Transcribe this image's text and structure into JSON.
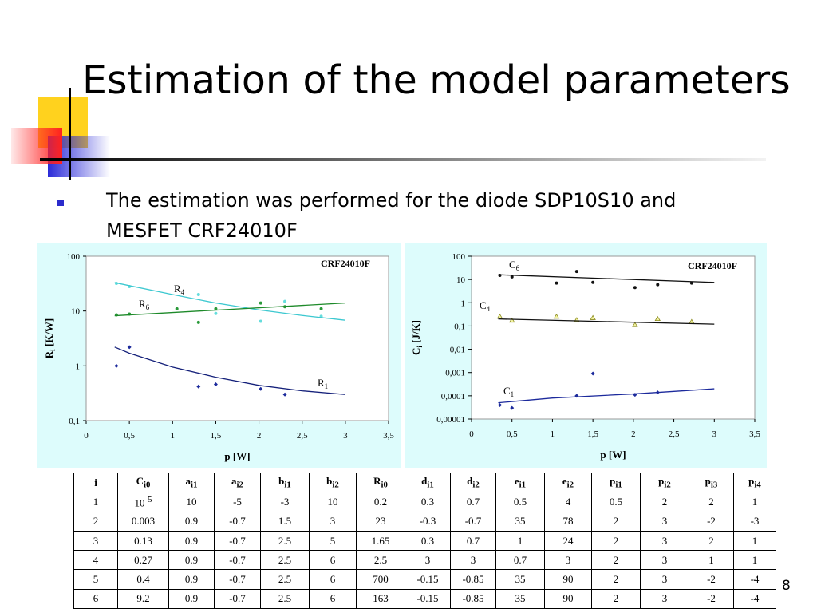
{
  "title": "Estimation of the model parameters",
  "bullet": [
    "The estimation was performed for the diode SDP10S10 and",
    "MESFET CRF24010F"
  ],
  "chart_data": [
    {
      "type": "scatter",
      "annotation": "CRF24010F",
      "xlabel": "p [W]",
      "ylabel": {
        "base": "R",
        "sub": "i",
        "rest": " [K/W]"
      },
      "log_y": true,
      "xlim": [
        0,
        3.5
      ],
      "ylim": [
        0.1,
        100
      ],
      "xticks": [
        0,
        {
          "value": 0.5,
          "label": "0,5"
        },
        1,
        {
          "value": 1.5,
          "label": "1,5"
        },
        2,
        {
          "value": 2.5,
          "label": "2,5"
        },
        3,
        {
          "value": 3.5,
          "label": "3,5"
        }
      ],
      "yticks": [
        {
          "value": 0.1,
          "label": "0,1"
        },
        1,
        10,
        100
      ],
      "series": [
        {
          "name": "R",
          "sub": "4",
          "color": "#66dddd",
          "marker": "circle",
          "x": [
            0.35,
            0.5,
            1.3,
            1.5,
            2.02,
            2.3,
            2.72
          ],
          "values": [
            32,
            28,
            20,
            9,
            6.5,
            15,
            8
          ]
        },
        {
          "name": "R",
          "sub": "6",
          "color": "#2a9a3a",
          "marker": "circle",
          "x": [
            0.35,
            0.5,
            1.05,
            1.3,
            1.5,
            2.02,
            2.3,
            2.72
          ],
          "values": [
            8.5,
            8.8,
            11,
            6.2,
            11,
            14,
            12,
            11
          ]
        },
        {
          "name": "R",
          "sub": "1",
          "color": "#1c2a9c",
          "marker": "diamond",
          "x": [
            0.35,
            0.5,
            1.3,
            1.5,
            2.02,
            2.3
          ],
          "values": [
            1.0,
            2.2,
            0.42,
            0.46,
            0.38,
            0.3
          ]
        },
        {
          "color": "#3cc8d0",
          "marker": "line",
          "x": [
            0.33,
            1,
            1.5,
            2,
            2.5,
            3
          ],
          "values": [
            33,
            20,
            14,
            10.5,
            8.3,
            6.8
          ]
        },
        {
          "color": "#1e8a2a",
          "marker": "line",
          "x": [
            0.33,
            3
          ],
          "values": [
            8.2,
            14
          ]
        },
        {
          "color": "#14207a",
          "marker": "line",
          "x": [
            0.33,
            0.5,
            1,
            1.5,
            2,
            2.5,
            3
          ],
          "values": [
            2.2,
            1.7,
            0.95,
            0.62,
            0.44,
            0.35,
            0.3
          ]
        }
      ]
    },
    {
      "type": "scatter",
      "annotation": "CRF24010F",
      "xlabel": "p [W]",
      "ylabel": {
        "base": "C",
        "sub": "i",
        "rest": " [J/K]"
      },
      "log_y": true,
      "xlim": [
        0,
        3.5
      ],
      "ylim": [
        1e-05,
        100
      ],
      "xticks": [
        0,
        {
          "value": 0.5,
          "label": "0,5"
        },
        1,
        {
          "value": 1.5,
          "label": "1,5"
        },
        2,
        {
          "value": 2.5,
          "label": "2,5"
        },
        3,
        {
          "value": 3.5,
          "label": "3,5"
        }
      ],
      "yticks": [
        {
          "value": 1e-05,
          "label": "0,00001"
        },
        {
          "value": 0.0001,
          "label": "0,0001"
        },
        {
          "value": 0.001,
          "label": "0,001"
        },
        {
          "value": 0.01,
          "label": "0,01"
        },
        {
          "value": 0.1,
          "label": "0,1"
        },
        1,
        10,
        100
      ],
      "series": [
        {
          "name": "C",
          "sub": "6",
          "color": "#111111",
          "marker": "circle",
          "x": [
            0.35,
            0.5,
            1.05,
            1.3,
            1.5,
            2.02,
            2.3,
            2.72
          ],
          "values": [
            15,
            13,
            7,
            22,
            7.5,
            4.5,
            6,
            7
          ]
        },
        {
          "name": "C",
          "sub": "4",
          "color": "#8a8a20",
          "marker": "triangle",
          "x": [
            0.35,
            0.5,
            1.05,
            1.3,
            1.5,
            2.02,
            2.3,
            2.72
          ],
          "values": [
            0.25,
            0.17,
            0.25,
            0.18,
            0.22,
            0.11,
            0.2,
            0.15
          ]
        },
        {
          "name": "C",
          "sub": "1",
          "color": "#1c2a9c",
          "marker": "diamond",
          "x": [
            0.35,
            0.5,
            1.3,
            1.5,
            2.02,
            2.3
          ],
          "values": [
            4e-05,
            3e-05,
            0.0001,
            0.0009,
            0.00011,
            0.00014
          ]
        },
        {
          "color": "#111111",
          "marker": "line",
          "x": [
            0.33,
            3
          ],
          "values": [
            16,
            7.5
          ]
        },
        {
          "color": "#111111",
          "marker": "line",
          "x": [
            0.33,
            3
          ],
          "values": [
            0.2,
            0.12
          ]
        },
        {
          "color": "#1c2a9c",
          "marker": "line",
          "x": [
            0.33,
            1,
            2,
            3
          ],
          "values": [
            5e-05,
            8e-05,
            0.00012,
            0.0002
          ]
        }
      ]
    }
  ],
  "table": {
    "header": [
      "i",
      {
        "base": "C",
        "sub": "i0"
      },
      {
        "base": "a",
        "sub": "i1"
      },
      {
        "base": "a",
        "sub": "i2"
      },
      {
        "base": "b",
        "sub": "i1"
      },
      {
        "base": "b",
        "sub": "i2"
      },
      {
        "base": "R",
        "sub": "i0"
      },
      {
        "base": "d",
        "sub": "i1"
      },
      {
        "base": "d",
        "sub": "i2"
      },
      {
        "base": "e",
        "sub": "i1"
      },
      {
        "base": "e",
        "sub": "i2"
      },
      {
        "base": "p",
        "sub": "i1"
      },
      {
        "base": "p",
        "sub": "i2"
      },
      {
        "base": "p",
        "sub": "i3"
      },
      {
        "base": "p",
        "sub": "i4"
      }
    ],
    "rows": [
      [
        "1",
        {
          "base": "10",
          "sup": "-5"
        },
        "10",
        "-5",
        "-3",
        "10",
        "0.2",
        "0.3",
        "0.7",
        "0.5",
        "4",
        "0.5",
        "2",
        "2",
        "1"
      ],
      [
        "2",
        "0.003",
        "0.9",
        "-0.7",
        "1.5",
        "3",
        "23",
        "-0.3",
        "-0.7",
        "35",
        "78",
        "2",
        "3",
        "-2",
        "-3"
      ],
      [
        "3",
        "0.13",
        "0.9",
        "-0.7",
        "2.5",
        "5",
        "1.65",
        "0.3",
        "0.7",
        "1",
        "24",
        "2",
        "3",
        "2",
        "1"
      ],
      [
        "4",
        "0.27",
        "0.9",
        "-0.7",
        "2.5",
        "6",
        "2.5",
        "3",
        "3",
        "0.7",
        "3",
        "2",
        "3",
        "1",
        "1"
      ],
      [
        "5",
        "0.4",
        "0.9",
        "-0.7",
        "2.5",
        "6",
        "700",
        "-0.15",
        "-0.85",
        "35",
        "90",
        "2",
        "3",
        "-2",
        "-4"
      ],
      [
        "6",
        "9.2",
        "0.9",
        "-0.7",
        "2.5",
        "6",
        "163",
        "-0.15",
        "-0.85",
        "35",
        "90",
        "2",
        "3",
        "-2",
        "-4"
      ]
    ]
  },
  "page_number": "8"
}
